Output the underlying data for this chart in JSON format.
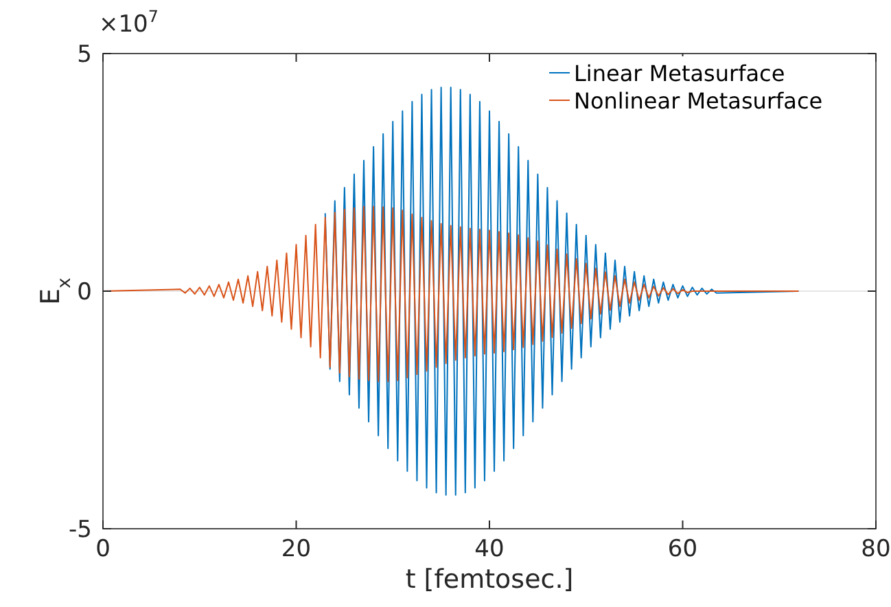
{
  "chart_data": {
    "type": "line",
    "xlabel": "t [femtosec.]",
    "ylabel": "E$_{x}$",
    "annotations": [
      "×10$^{7}$"
    ],
    "xlim": [
      0,
      80
    ],
    "xticks": [
      0,
      20,
      40,
      60,
      80
    ],
    "ylim": [
      -5,
      5
    ],
    "yticks": [
      -5,
      0,
      5
    ],
    "grid": "y",
    "legend": "top right",
    "line_style": "solid",
    "marker": "none",
    "x": [
      0,
      8,
      8.5,
      9,
      9.5,
      10,
      10.5,
      11,
      11.5,
      12,
      12.5,
      13,
      13.5,
      14,
      14.5,
      15,
      15.5,
      16,
      16.5,
      17,
      17.5,
      18,
      18.5,
      19,
      19.5,
      20,
      20.5,
      21,
      21.5,
      22,
      22.5,
      23,
      23.5,
      24,
      24.5,
      25,
      25.5,
      26,
      26.5,
      27,
      27.5,
      28,
      28.5,
      29,
      29.5,
      30,
      30.5,
      31,
      31.5,
      32,
      32.5,
      33,
      33.5,
      34,
      34.5,
      35,
      35.5,
      36,
      36.5,
      37,
      37.5,
      38,
      38.5,
      39,
      39.5,
      40,
      40.5,
      41,
      41.5,
      42,
      42.5,
      43,
      43.5,
      44,
      44.5,
      45,
      45.5,
      46,
      46.5,
      47,
      47.5,
      48,
      48.5,
      49,
      49.5,
      50,
      50.5,
      51,
      51.5,
      52,
      52.5,
      53,
      53.5,
      54,
      54.5,
      55,
      55.5,
      56,
      56.5,
      57,
      57.5,
      58,
      58.5,
      59,
      59.5,
      60,
      60.5,
      61,
      61.5,
      62,
      62.5,
      63,
      63.5,
      72
    ],
    "series": [
      {
        "name": "Linear Metasurface",
        "color": "#0072bd",
        "values": [
          null,
          null,
          null,
          null,
          null,
          null,
          null,
          null,
          null,
          null,
          null,
          null,
          null,
          null,
          null,
          null,
          null,
          null,
          null,
          null,
          null,
          null,
          null,
          null,
          null,
          null,
          null,
          null,
          null,
          null,
          null,
          1.64,
          -1.64,
          1.9,
          -1.9,
          2.18,
          -2.18,
          2.46,
          -2.46,
          2.75,
          -2.75,
          3.04,
          -3.04,
          3.31,
          -3.31,
          3.57,
          -3.57,
          3.79,
          -3.79,
          3.99,
          -3.99,
          4.14,
          -4.14,
          4.24,
          -4.24,
          4.29,
          -4.29,
          4.29,
          -4.29,
          4.24,
          -4.24,
          4.14,
          -4.14,
          3.99,
          -3.99,
          3.79,
          -3.79,
          3.57,
          -3.57,
          3.31,
          -3.31,
          3.04,
          -3.04,
          2.75,
          -2.75,
          2.46,
          -2.46,
          2.18,
          -2.18,
          1.9,
          -1.9,
          1.64,
          -1.64,
          1.4,
          -1.4,
          1.17,
          -1.17,
          0.98,
          -0.98,
          0.8,
          -0.8,
          0.65,
          -0.65,
          0.52,
          -0.52,
          0.41,
          -0.41,
          0.32,
          -0.32,
          0.25,
          -0.25,
          0.19,
          -0.19,
          0.14,
          -0.14,
          0.11,
          -0.11,
          0.08,
          -0.08,
          0.06,
          -0.06,
          0.04,
          -0.04,
          0
        ]
      },
      {
        "name": "Nonlinear Metasurface",
        "color": "#d95319",
        "values": [
          0,
          0.04,
          -0.04,
          0.06,
          -0.06,
          0.08,
          -0.08,
          0.11,
          -0.11,
          0.14,
          -0.14,
          0.19,
          -0.19,
          0.25,
          -0.25,
          0.32,
          -0.32,
          0.41,
          -0.41,
          0.52,
          -0.52,
          0.65,
          -0.65,
          0.8,
          -0.8,
          0.98,
          -0.98,
          1.17,
          -1.17,
          1.4,
          -1.4,
          1.55,
          -1.6,
          1.65,
          -1.72,
          1.72,
          -1.8,
          1.75,
          -1.85,
          1.78,
          -1.88,
          1.78,
          -1.9,
          1.77,
          -1.9,
          1.75,
          -1.88,
          1.7,
          -1.82,
          1.62,
          -1.75,
          1.55,
          -1.68,
          1.48,
          -1.6,
          1.42,
          -1.52,
          1.38,
          -1.45,
          1.35,
          -1.4,
          1.32,
          -1.36,
          1.3,
          -1.32,
          1.28,
          -1.3,
          1.25,
          -1.27,
          1.22,
          -1.23,
          1.18,
          -1.18,
          1.12,
          -1.12,
          1.05,
          -1.05,
          0.97,
          -0.97,
          0.88,
          -0.88,
          0.78,
          -0.78,
          0.68,
          -0.68,
          0.58,
          -0.58,
          0.48,
          -0.48,
          0.4,
          -0.4,
          0.32,
          -0.32,
          0.25,
          -0.25,
          0.19,
          -0.19,
          0.14,
          -0.14,
          0.1,
          -0.1,
          0.07,
          -0.07,
          0.05,
          -0.05,
          0.03,
          -0.03,
          0,
          0,
          0,
          0,
          0,
          0,
          0
        ]
      }
    ]
  }
}
